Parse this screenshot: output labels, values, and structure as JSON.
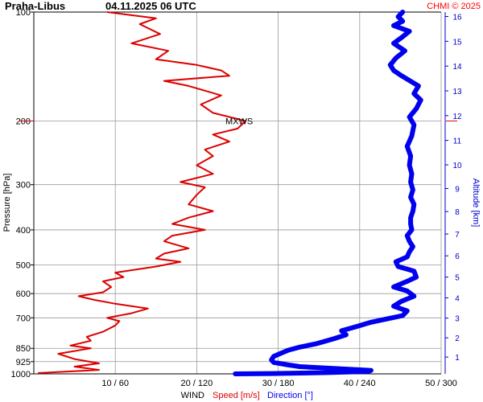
{
  "header": {
    "station": "Praha-Libus",
    "datetime": "04.11.2025 06 UTC",
    "credit": "CHMI © 2025"
  },
  "colors": {
    "speed": "#dd0000",
    "direction": "#0000ee",
    "grid": "#999999",
    "axis": "#000000",
    "altitude_axis": "#0000cc"
  },
  "chart_data": {
    "type": "line",
    "ylabel_left": "Pressure [hPa]",
    "ylabel_right": "Altitude [km]",
    "xlabel_prefix": "WIND",
    "xlabel_speed": "Speed [m/s]",
    "xlabel_direction": "Direction [°]",
    "y_scale": "log-pressure",
    "ylim_hpa": [
      1000,
      100
    ],
    "xlim_speed": [
      0,
      50
    ],
    "xlim_direction": [
      0,
      360
    ],
    "pressure_ticks": [
      100,
      200,
      300,
      400,
      500,
      600,
      700,
      850,
      925,
      1000
    ],
    "pressure_tick_labels": [
      "100",
      "200",
      "300",
      "400",
      "500",
      "600",
      "700",
      "850",
      "925",
      "1000"
    ],
    "x_tick_labels": [
      "10 / 60",
      "20 / 120",
      "30 / 180",
      "40 / 240",
      "50 / 300"
    ],
    "altitude_ticks_km": [
      1,
      2,
      3,
      4,
      5,
      6,
      7,
      8,
      9,
      10,
      11,
      12,
      13,
      14,
      15,
      16
    ],
    "altitude_tick_labels": [
      "1",
      "2",
      "3",
      "4",
      "5",
      "6",
      "7",
      "8",
      "9",
      "10",
      "11",
      "12",
      "13",
      "14",
      "15",
      "16"
    ],
    "annotation": {
      "text": "MXWS",
      "pressure_hpa": 200
    },
    "series": [
      {
        "name": "Speed [m/s]",
        "unit": "m/s",
        "points": [
          [
            0.5,
            995
          ],
          [
            8.0,
            975
          ],
          [
            5.0,
            955
          ],
          [
            8.0,
            935
          ],
          [
            5.0,
            910
          ],
          [
            3.0,
            880
          ],
          [
            7.0,
            850
          ],
          [
            4.5,
            835
          ],
          [
            7.0,
            810
          ],
          [
            6.5,
            790
          ],
          [
            8.5,
            765
          ],
          [
            10.0,
            735
          ],
          [
            10.5,
            715
          ],
          [
            9.0,
            700
          ],
          [
            12.0,
            680
          ],
          [
            14.0,
            660
          ],
          [
            10.0,
            640
          ],
          [
            7.5,
            625
          ],
          [
            5.5,
            610
          ],
          [
            8.5,
            595
          ],
          [
            9.5,
            575
          ],
          [
            8.5,
            555
          ],
          [
            11.0,
            540
          ],
          [
            10.0,
            525
          ],
          [
            15.0,
            505
          ],
          [
            18.0,
            490
          ],
          [
            15.0,
            480
          ],
          [
            16.0,
            465
          ],
          [
            19.0,
            450
          ],
          [
            16.0,
            430
          ],
          [
            17.0,
            415
          ],
          [
            21.0,
            400
          ],
          [
            17.0,
            385
          ],
          [
            19.0,
            370
          ],
          [
            22.0,
            355
          ],
          [
            19.0,
            340
          ],
          [
            20.0,
            320
          ],
          [
            21.0,
            305
          ],
          [
            18.0,
            295
          ],
          [
            22.0,
            280
          ],
          [
            20.0,
            265
          ],
          [
            22.0,
            250
          ],
          [
            21.0,
            240
          ],
          [
            24.0,
            228
          ],
          [
            22.0,
            218
          ],
          [
            25.0,
            210
          ],
          [
            26.0,
            200
          ],
          [
            22.0,
            190
          ],
          [
            20.5,
            180
          ],
          [
            23.0,
            170
          ],
          [
            19.0,
            160
          ],
          [
            16.0,
            155
          ],
          [
            24.0,
            150
          ],
          [
            23.0,
            145
          ],
          [
            20.0,
            140
          ],
          [
            15.0,
            135
          ],
          [
            16.5,
            128
          ],
          [
            12.0,
            122
          ],
          [
            15.5,
            115
          ],
          [
            13.0,
            108
          ],
          [
            15.0,
            104
          ],
          [
            9.0,
            100
          ]
        ]
      },
      {
        "name": "Direction [°]",
        "unit": "deg",
        "points": [
          [
            178,
            1000
          ],
          [
            210,
            998
          ],
          [
            260,
            992
          ],
          [
            295,
            985
          ],
          [
            298,
            978
          ],
          [
            270,
            968
          ],
          [
            235,
            955
          ],
          [
            225,
            945
          ],
          [
            212,
            930
          ],
          [
            210,
            915
          ],
          [
            212,
            895
          ],
          [
            218,
            878
          ],
          [
            225,
            860
          ],
          [
            234,
            845
          ],
          [
            250,
            825
          ],
          [
            265,
            800
          ],
          [
            276,
            780
          ],
          [
            272,
            760
          ],
          [
            285,
            740
          ],
          [
            298,
            720
          ],
          [
            312,
            705
          ],
          [
            326,
            690
          ],
          [
            330,
            670
          ],
          [
            318,
            650
          ],
          [
            325,
            630
          ],
          [
            336,
            610
          ],
          [
            330,
            590
          ],
          [
            318,
            575
          ],
          [
            330,
            555
          ],
          [
            338,
            540
          ],
          [
            336,
            520
          ],
          [
            322,
            505
          ],
          [
            320,
            490
          ],
          [
            330,
            475
          ],
          [
            332,
            460
          ],
          [
            335,
            445
          ],
          [
            332,
            430
          ],
          [
            330,
            415
          ],
          [
            334,
            400
          ],
          [
            333,
            385
          ],
          [
            333,
            370
          ],
          [
            335,
            355
          ],
          [
            336,
            340
          ],
          [
            333,
            325
          ],
          [
            335,
            310
          ],
          [
            333,
            295
          ],
          [
            334,
            280
          ],
          [
            332,
            265
          ],
          [
            333,
            250
          ],
          [
            330,
            235
          ],
          [
            334,
            220
          ],
          [
            336,
            205
          ],
          [
            332,
            195
          ],
          [
            338,
            185
          ],
          [
            342,
            175
          ],
          [
            336,
            168
          ],
          [
            340,
            160
          ],
          [
            325,
            150
          ],
          [
            318,
            145
          ],
          [
            315,
            140
          ],
          [
            320,
            134
          ],
          [
            328,
            128
          ],
          [
            318,
            122
          ],
          [
            326,
            117
          ],
          [
            332,
            113
          ],
          [
            318,
            109
          ],
          [
            326,
            106
          ],
          [
            322,
            103
          ],
          [
            326,
            100
          ]
        ]
      }
    ]
  }
}
